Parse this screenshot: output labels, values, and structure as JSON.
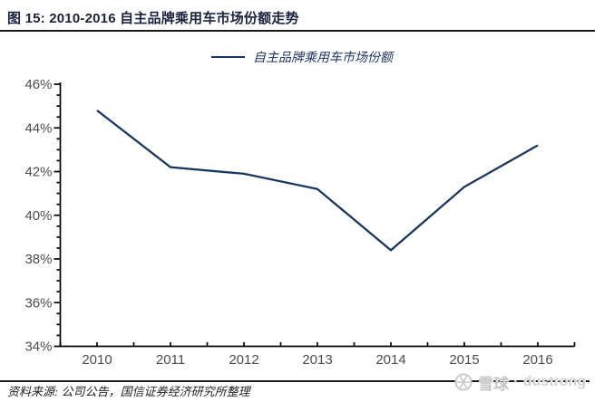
{
  "figure": {
    "title": "图 15:  2010-2016 自主品牌乘用车市场份额走势",
    "source_note": "资料来源: 公司公告，国信证券经济研究所整理"
  },
  "legend": {
    "label": "自主品牌乘用车市场份额"
  },
  "watermark": {
    "brand": "雪球",
    "separator": "·",
    "name": "dustrong"
  },
  "colors": {
    "series_line": "#17375E",
    "title_text": "#1A2340",
    "legend_text": "#1F3864",
    "axis_line": "#000000",
    "tick_label": "#4D4D4D",
    "divider": "#1A1A1A",
    "watermark_brand": "#C6C6C6",
    "watermark_user": "#D2D2D2"
  },
  "chart_data": {
    "type": "line",
    "title": "2010-2016 自主品牌乘用车市场份额走势",
    "categories": [
      "2010",
      "2011",
      "2012",
      "2013",
      "2014",
      "2015",
      "2016"
    ],
    "series": [
      {
        "name": "自主品牌乘用车市场份额",
        "values": [
          44.8,
          42.2,
          41.9,
          41.2,
          38.4,
          41.3,
          43.2
        ]
      }
    ],
    "xlabel": "",
    "ylabel": "",
    "ylim": [
      34,
      46
    ],
    "y_major_step": 2,
    "y_minor_step": 0.5,
    "y_tick_suffix": "%",
    "grid": false,
    "legend_position": "top"
  }
}
